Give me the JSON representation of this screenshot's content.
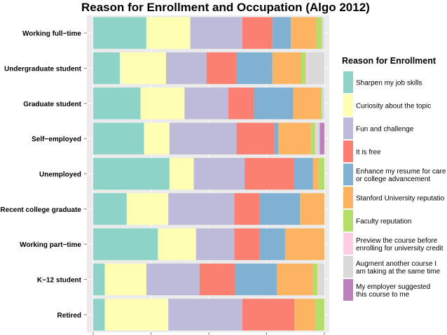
{
  "chart_data": {
    "type": "bar",
    "orientation": "horizontal",
    "stacked": true,
    "normalized": true,
    "title": "Reason for Enrollment and Occupation (Algo 2012)",
    "categories": [
      "Working full−time",
      "Undergraduate student",
      "Graduate student",
      "Self−employed",
      "Unemployed",
      "Recent college graduate",
      "Working part−time",
      "K−12 student",
      "Retired"
    ],
    "legend_title": "Reason for Enrollment",
    "legend_position": "right",
    "grid": true,
    "series": [
      {
        "name": "Sharpen my job skills",
        "color": "#8dd3c7",
        "values": [
          0.23,
          0.115,
          0.205,
          0.22,
          0.33,
          0.145,
          0.28,
          0.05,
          0.05
        ]
      },
      {
        "name": "Curiosity about the topic",
        "color": "#ffffb3",
        "values": [
          0.19,
          0.2,
          0.19,
          0.11,
          0.105,
          0.18,
          0.165,
          0.18,
          0.275
        ]
      },
      {
        "name": "Fun and challenge",
        "color": "#bebada",
        "values": [
          0.225,
          0.175,
          0.19,
          0.29,
          0.22,
          0.285,
          0.165,
          0.23,
          0.32
        ]
      },
      {
        "name": "It is free",
        "color": "#fb8072",
        "values": [
          0.13,
          0.13,
          0.11,
          0.165,
          0.215,
          0.11,
          0.11,
          0.155,
          0.225
        ]
      },
      {
        "name": "Enhance my resume for career or college advancement",
        "color": "#80b1d3",
        "values": [
          0.08,
          0.155,
          0.17,
          0.015,
          0.08,
          0.175,
          0.11,
          0.18,
          0.0
        ]
      },
      {
        "name": "Stanford University reputation",
        "color": "#fdb462",
        "values": [
          0.11,
          0.125,
          0.12,
          0.14,
          0.025,
          0.105,
          0.17,
          0.155,
          0.09
        ]
      },
      {
        "name": "Faculty reputation",
        "color": "#b3de69",
        "values": [
          0.025,
          0.02,
          0.005,
          0.02,
          0.025,
          0.0,
          0.0,
          0.02,
          0.04
        ]
      },
      {
        "name": "Preview the course before enrolling for university credit",
        "color": "#fccde5",
        "values": [
          0.005,
          0.01,
          0.0,
          0.005,
          0.0,
          0.0,
          0.0,
          0.005,
          0.0
        ]
      },
      {
        "name": "Augment another course I am taking at the same time",
        "color": "#d9d9d9",
        "values": [
          0.005,
          0.07,
          0.01,
          0.015,
          0.0,
          0.0,
          0.0,
          0.025,
          0.0
        ]
      },
      {
        "name": "My employer suggested this course to me",
        "color": "#bc80bd",
        "values": [
          0.0,
          0.0,
          0.0,
          0.02,
          0.0,
          0.0,
          0.0,
          0.0,
          0.0
        ]
      }
    ]
  },
  "legend_labels": [
    "Sharpen my job skills",
    "Curiosity about the topic",
    "Fun and challenge",
    "It is free",
    "Enhance my resume for care\nor college advancement",
    "Stanford University reputatio",
    "Faculty reputation",
    "Preview the course before\nenrolling for university credit",
    "Augment another course I\nam taking at the same time",
    "My employer suggested\nthis course to me"
  ]
}
